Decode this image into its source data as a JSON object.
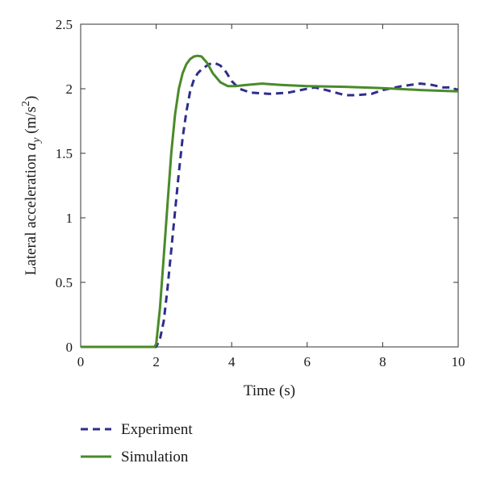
{
  "chart_data": {
    "type": "line",
    "xlabel": "Time (s)",
    "ylabel": {
      "prefix": "Lateral acceleration ",
      "symbol": "a",
      "subscript": "y",
      "unit_open": " (m/s",
      "unit_sup": "2",
      "unit_close": ")"
    },
    "xlim": [
      0,
      10
    ],
    "ylim": [
      0,
      2.5
    ],
    "xticks": [
      0,
      2,
      4,
      6,
      8,
      10
    ],
    "xtick_labels": [
      "0",
      "2",
      "4",
      "6",
      "8",
      "10"
    ],
    "yticks": [
      0,
      0.5,
      1,
      1.5,
      2,
      2.5
    ],
    "ytick_labels": [
      "0",
      "0.5",
      "1",
      "1.5",
      "2",
      "2.5"
    ],
    "grid": false,
    "legend_position": "below-left",
    "series": [
      {
        "name": "Experiment",
        "color": "#2e2e8c",
        "style": "dashed",
        "points": [
          [
            0,
            0
          ],
          [
            2.0,
            0
          ],
          [
            2.1,
            0.06
          ],
          [
            2.2,
            0.2
          ],
          [
            2.3,
            0.45
          ],
          [
            2.4,
            0.75
          ],
          [
            2.5,
            1.05
          ],
          [
            2.6,
            1.35
          ],
          [
            2.7,
            1.62
          ],
          [
            2.8,
            1.82
          ],
          [
            2.9,
            1.98
          ],
          [
            3.0,
            2.07
          ],
          [
            3.1,
            2.12
          ],
          [
            3.2,
            2.15
          ],
          [
            3.3,
            2.17
          ],
          [
            3.4,
            2.19
          ],
          [
            3.55,
            2.2
          ],
          [
            3.7,
            2.18
          ],
          [
            3.85,
            2.13
          ],
          [
            4.0,
            2.06
          ],
          [
            4.2,
            2.0
          ],
          [
            4.5,
            1.97
          ],
          [
            5.0,
            1.96
          ],
          [
            5.5,
            1.97
          ],
          [
            6.0,
            2.0
          ],
          [
            6.2,
            2.01
          ],
          [
            6.5,
            1.99
          ],
          [
            7.0,
            1.95
          ],
          [
            7.3,
            1.95
          ],
          [
            7.7,
            1.96
          ],
          [
            8.0,
            1.99
          ],
          [
            8.5,
            2.02
          ],
          [
            9.0,
            2.04
          ],
          [
            9.3,
            2.03
          ],
          [
            9.6,
            2.01
          ],
          [
            9.8,
            2.01
          ],
          [
            10.0,
            1.99
          ]
        ]
      },
      {
        "name": "Simulation",
        "color": "#4a8a2a",
        "style": "solid",
        "points": [
          [
            0,
            0
          ],
          [
            1.95,
            0
          ],
          [
            2.0,
            0.02
          ],
          [
            2.1,
            0.3
          ],
          [
            2.2,
            0.7
          ],
          [
            2.3,
            1.1
          ],
          [
            2.4,
            1.5
          ],
          [
            2.5,
            1.8
          ],
          [
            2.6,
            2.0
          ],
          [
            2.7,
            2.12
          ],
          [
            2.8,
            2.19
          ],
          [
            2.9,
            2.23
          ],
          [
            3.0,
            2.25
          ],
          [
            3.1,
            2.255
          ],
          [
            3.2,
            2.25
          ],
          [
            3.35,
            2.2
          ],
          [
            3.5,
            2.12
          ],
          [
            3.7,
            2.05
          ],
          [
            3.9,
            2.02
          ],
          [
            4.1,
            2.02
          ],
          [
            4.4,
            2.03
          ],
          [
            4.8,
            2.04
          ],
          [
            5.3,
            2.03
          ],
          [
            6.0,
            2.02
          ],
          [
            7.0,
            2.015
          ],
          [
            8.0,
            2.005
          ],
          [
            9.0,
            1.99
          ],
          [
            10.0,
            1.98
          ]
        ]
      }
    ]
  }
}
